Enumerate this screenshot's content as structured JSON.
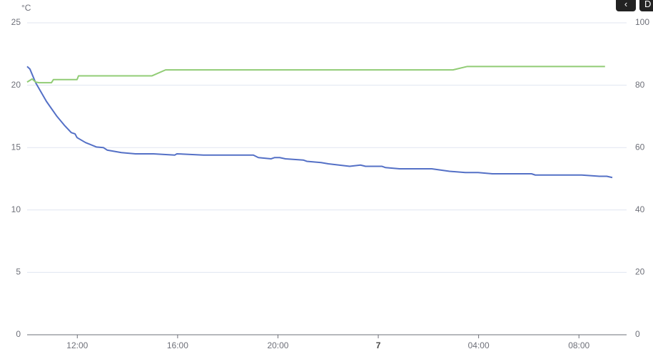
{
  "chart_data": {
    "type": "line",
    "y_unit": "°C",
    "x": [
      10.0,
      10.11,
      10.34,
      10.77,
      11.19,
      11.48,
      11.76,
      11.91,
      11.99,
      12.33,
      12.76,
      13.04,
      13.19,
      13.76,
      14.32,
      15.04,
      15.89,
      15.97,
      17.03,
      19.02,
      19.22,
      19.73,
      19.87,
      20.07,
      20.3,
      21.01,
      21.15,
      21.72,
      22.01,
      22.86,
      23.29,
      23.49,
      24.14,
      24.28,
      24.85,
      26.13,
      26.84,
      27.47,
      27.98,
      28.55,
      30.11,
      30.26,
      32.11,
      32.82,
      33.11,
      33.33
    ],
    "series": [
      {
        "color": "#5470c6",
        "values": [
          21.5,
          21.3,
          20.2,
          18.7,
          17.5,
          16.8,
          16.2,
          16.1,
          15.8,
          15.4,
          15.05,
          15.0,
          14.8,
          14.6,
          14.5,
          14.5,
          14.4,
          14.5,
          14.4,
          14.4,
          14.2,
          14.1,
          14.2,
          14.2,
          14.1,
          14.0,
          13.9,
          13.8,
          13.7,
          13.5,
          13.6,
          13.5,
          13.5,
          13.4,
          13.3,
          13.3,
          13.1,
          13.0,
          13.0,
          12.9,
          12.9,
          12.8,
          12.8,
          12.7,
          12.7,
          12.6
        ]
      },
      {
        "color": "#91cc75",
        "axis": "y2",
        "x": [
          10.0,
          10.2,
          10.34,
          10.48,
          10.97,
          11.05,
          11.99,
          12.05,
          14.98,
          15.52,
          26.98,
          27.55,
          33.04
        ],
        "values": [
          81,
          82,
          81,
          80.8,
          80.8,
          81.8,
          81.8,
          83,
          83,
          84.9,
          84.9,
          86,
          86
        ]
      }
    ],
    "xlim": [
      10,
      33.9
    ],
    "xticks": [
      {
        "value": 12,
        "label": "12:00"
      },
      {
        "value": 16,
        "label": "16:00"
      },
      {
        "value": 20,
        "label": "20:00"
      },
      {
        "value": 24,
        "label": "7"
      },
      {
        "value": 28,
        "label": "04:00"
      },
      {
        "value": 32,
        "label": "08:00"
      }
    ],
    "ylim": [
      0,
      25
    ],
    "yticks": [
      0,
      5,
      10,
      15,
      20,
      25
    ],
    "y2lim": [
      0,
      100
    ],
    "y2ticks": [
      0,
      20,
      40,
      60,
      80,
      100
    ],
    "grid": true,
    "controls": {
      "next_label": "D"
    }
  }
}
